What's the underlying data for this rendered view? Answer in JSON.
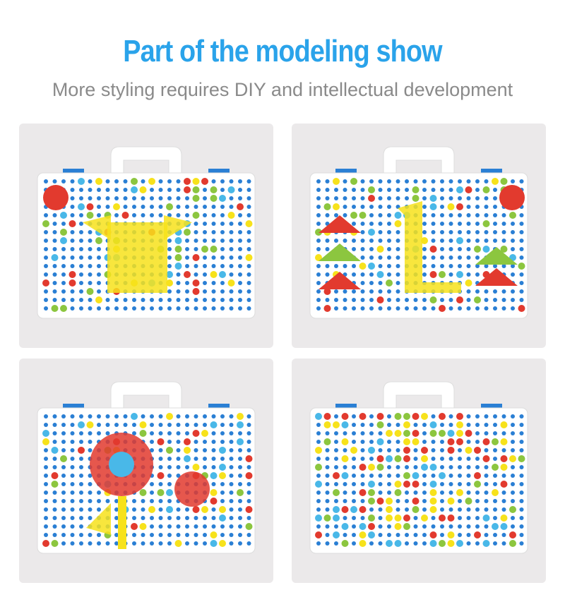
{
  "header": {
    "title": "Part of the modeling show",
    "subtitle": "More styling requires DIY and intellectual development"
  },
  "colors": {
    "title": "#2aa3ea",
    "subtitle": "#8a8a8a",
    "panel_bg": "#ebe9ea",
    "peg_blue": "#2a7fd4",
    "red": "#e23a2e",
    "yellow": "#f7e21b",
    "green": "#8cc63f",
    "light_blue": "#49b8e8"
  },
  "panels": [
    {
      "design": "robot-figure"
    },
    {
      "design": "trees-and-giraffe"
    },
    {
      "design": "flowers"
    },
    {
      "design": "mosaic-pattern"
    }
  ]
}
